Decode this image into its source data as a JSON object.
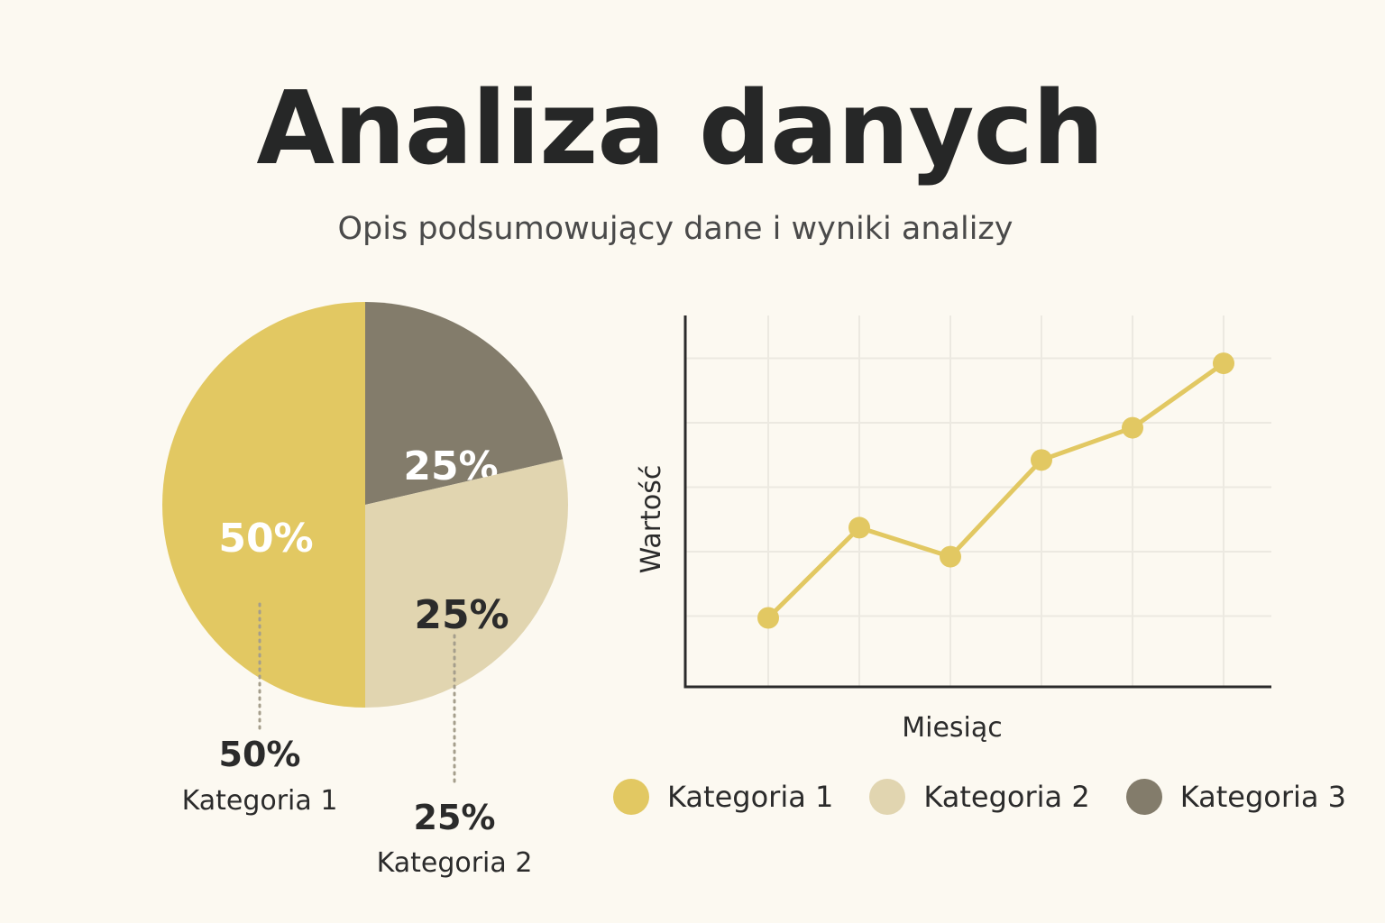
{
  "header": {
    "title": "Analiza danych",
    "subtitle": "Opis podsumowujący dane i wyniki analizy"
  },
  "colors": {
    "background": "#fcf9f1",
    "kategoria1": "#e2c862",
    "kategoria2": "#e1d5b0",
    "kategoria3": "#837c6b",
    "grid": "#ece9e1",
    "axis": "#2b2b2b"
  },
  "chart_data": [
    {
      "type": "pie",
      "slices": [
        {
          "name": "Kategoria 1",
          "value": 50,
          "label": "50%",
          "color": "#e2c862",
          "label_color": "#ffffff"
        },
        {
          "name": "Kategoria 3",
          "value": 25,
          "label": "25%",
          "color": "#837c6b",
          "label_color": "#ffffff"
        },
        {
          "name": "Kategoria 2",
          "value": 25,
          "label": "25%",
          "color": "#e1d5b0",
          "label_color": "#2b2b2b"
        }
      ],
      "callouts": [
        {
          "pct": "50%",
          "name": "Kategoria 1"
        },
        {
          "pct": "25%",
          "name": "Kategoria 2"
        }
      ]
    },
    {
      "type": "line",
      "xlabel": "Miesiąc",
      "ylabel": "Wartość",
      "grid": true,
      "x_count": 6,
      "ylim": [
        0,
        6
      ],
      "series": [
        {
          "color": "#e2c862",
          "values": [
            1.0,
            2.4,
            1.95,
            3.45,
            3.95,
            4.95
          ]
        }
      ]
    }
  ],
  "legend": {
    "items": [
      {
        "label": "Kategoria 1",
        "color": "#e2c862"
      },
      {
        "label": "Kategoria 2",
        "color": "#e1d5b0"
      },
      {
        "label": "Kategoria 3",
        "color": "#837c6b"
      }
    ]
  }
}
